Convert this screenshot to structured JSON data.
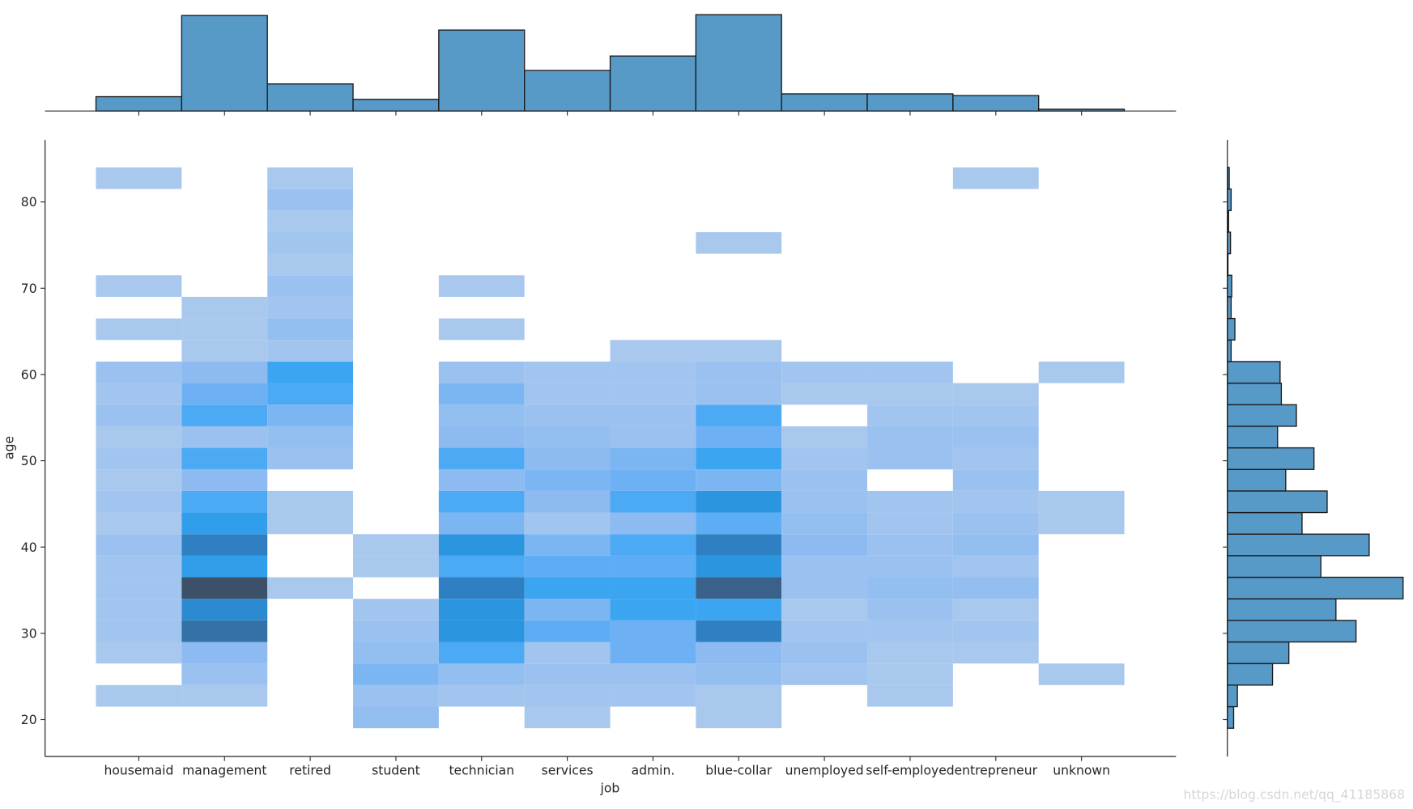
{
  "chart_data": {
    "type": "heatmap",
    "kind": "joint histogram (2D histogram with marginal histograms)",
    "xlabel": "job",
    "ylabel": "age",
    "categories": [
      "housemaid",
      "management",
      "retired",
      "student",
      "technician",
      "services",
      "admin.",
      "blue-collar",
      "unemployed",
      "self-employed",
      "entrepreneur",
      "unknown"
    ],
    "y_bin_edges": [
      19,
      21.5,
      24,
      26.5,
      29,
      31.5,
      34,
      36.5,
      39,
      41.5,
      44,
      46.5,
      49,
      51.5,
      54,
      56.5,
      59,
      61.5,
      64,
      66.5,
      69,
      71.5,
      74,
      76.5,
      79,
      81.5,
      84
    ],
    "y_ticks": [
      20,
      30,
      40,
      50,
      60,
      70,
      80
    ],
    "ylim": [
      16,
      88
    ],
    "cell_counts_by_job": {
      "housemaid": [
        0,
        1,
        0,
        1,
        2,
        2,
        2,
        2,
        3,
        1,
        2,
        1,
        2,
        1,
        3,
        2,
        3,
        0,
        1,
        0,
        1,
        0,
        0,
        0,
        0,
        1
      ],
      "management": [
        0,
        1,
        3,
        5,
        15,
        13,
        17,
        11,
        14,
        11,
        9,
        5,
        9,
        3,
        9,
        7,
        5,
        1,
        1,
        1,
        0,
        0,
        0,
        0,
        0,
        0
      ],
      "retired": [
        0,
        0,
        0,
        0,
        0,
        0,
        1,
        0,
        0,
        1,
        1,
        0,
        3,
        4,
        6,
        9,
        10,
        2,
        4,
        2,
        3,
        1,
        2,
        1,
        3,
        1
      ],
      "student": [
        4,
        3,
        6,
        4,
        3,
        2,
        0,
        1,
        1,
        0,
        0,
        0,
        0,
        0,
        0,
        0,
        0,
        0,
        0,
        0,
        0,
        0,
        0,
        0,
        0,
        0
      ],
      "technician": [
        0,
        2,
        4,
        9,
        12,
        12,
        14,
        9,
        12,
        6,
        9,
        5,
        9,
        5,
        4,
        6,
        3,
        0,
        1,
        0,
        1,
        0,
        0,
        0,
        0,
        0
      ],
      "services": [
        1,
        2,
        3,
        2,
        8,
        6,
        10,
        8,
        6,
        2,
        5,
        6,
        5,
        4,
        3,
        2,
        2,
        0,
        0,
        0,
        0,
        0,
        0,
        0,
        0,
        0
      ],
      "admin.": [
        0,
        2,
        3,
        7,
        7,
        10,
        10,
        8,
        9,
        5,
        9,
        7,
        6,
        3,
        3,
        2,
        2,
        1,
        0,
        0,
        0,
        0,
        0,
        0,
        0,
        0
      ],
      "blue-collar": [
        1,
        1,
        4,
        5,
        14,
        10,
        16,
        12,
        14,
        8,
        12,
        6,
        10,
        7,
        9,
        3,
        3,
        1,
        0,
        0,
        0,
        0,
        1,
        0,
        0,
        0
      ],
      "unemployed": [
        0,
        0,
        2,
        3,
        2,
        1,
        3,
        3,
        5,
        4,
        3,
        3,
        2,
        1,
        0,
        1,
        2,
        0,
        0,
        0,
        0,
        0,
        0,
        0,
        0,
        0
      ],
      "self-employed": [
        0,
        1,
        1,
        1,
        2,
        3,
        4,
        3,
        3,
        2,
        2,
        0,
        3,
        3,
        2,
        1,
        2,
        0,
        0,
        0,
        0,
        0,
        0,
        0,
        0,
        0
      ],
      "entrepreneur": [
        0,
        0,
        0,
        1,
        2,
        1,
        4,
        2,
        4,
        3,
        2,
        3,
        2,
        3,
        2,
        1,
        0,
        0,
        0,
        0,
        0,
        0,
        0,
        0,
        0,
        1
      ],
      "unknown": [
        0,
        0,
        1,
        0,
        0,
        0,
        0,
        0,
        0,
        1,
        1,
        0,
        0,
        0,
        0,
        0,
        1,
        0,
        0,
        0,
        0,
        0,
        0,
        0,
        0,
        0
      ]
    },
    "marginal_x_counts": [
      65,
      434,
      123,
      53,
      368,
      184,
      250,
      438,
      78,
      78,
      70,
      8
    ],
    "marginal_y_counts": [
      10,
      16,
      72,
      98,
      205,
      173,
      280,
      149,
      226,
      119,
      159,
      93,
      138,
      80,
      110,
      86,
      84,
      6,
      12,
      6,
      7,
      1,
      5,
      2,
      6,
      3
    ],
    "colors": {
      "marginal_bar": "#5799c7",
      "bar_edge": "#1a1a1a",
      "cmap_light": "#a9c8ee",
      "cmap_mid": "#31a2f0",
      "cmap_dark": "#3c5068"
    },
    "grid": false,
    "legend": "none"
  },
  "watermark": "https://blog.csdn.net/qq_41185868"
}
